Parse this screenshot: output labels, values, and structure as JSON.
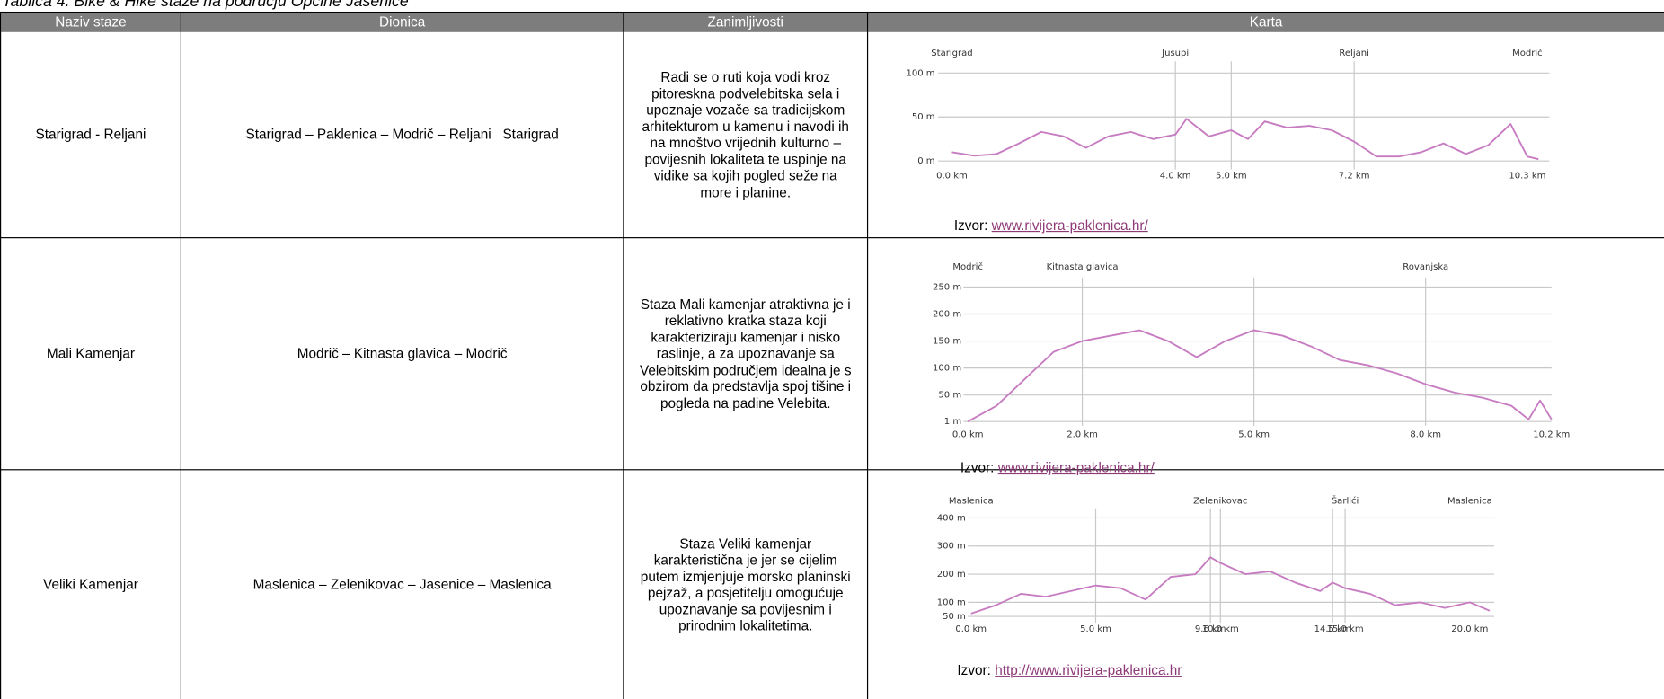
{
  "caption": "Tablica 4. Bike & Hike staze na području Općine Jasenice",
  "table": {
    "headers": [
      "Naziv staze",
      "Dionica",
      "Zanimljivosti",
      "Karta"
    ],
    "rows": [
      {
        "naziv": "Starigrad - Reljani",
        "dionica": "Starigrad – Paklenica – Modrič – Reljani   Starigrad",
        "zanimljivosti": "Radi se o ruti koja vodi kroz pitoreskna podvelebitska sela i upoznaje vozače sa tradicijskom arhitekturom u kamenu i navodi ih na mnoštvo vrijednih kulturno – povijesnih lokaliteta te uspinje na vidike sa kojih pogled seže na more i planine.",
        "karta": {
          "type": "line",
          "places": [
            "Starigrad",
            "Jusupi",
            null,
            "Reljani",
            "Modrič"
          ],
          "xlim": [
            0,
            10.6
          ],
          "xticks": [
            {
              "value": 0,
              "label": "0.0 km"
            },
            {
              "value": 4,
              "label": "4.0 km"
            },
            {
              "value": 5,
              "label": "5.0 km"
            },
            {
              "value": 7.2,
              "label": "7.2 km"
            },
            {
              "value": 10.3,
              "label": "10.3 km"
            }
          ],
          "ylim": [
            0,
            100
          ],
          "yticks": [
            {
              "value": 0,
              "label": "0 m"
            },
            {
              "value": 50,
              "label": "50 m"
            },
            {
              "value": 100,
              "label": "100 m"
            }
          ],
          "color": "#c77cc2",
          "x": [
            0,
            0.4,
            0.8,
            1.2,
            1.6,
            2.0,
            2.4,
            2.8,
            3.2,
            3.6,
            4.0,
            4.2,
            4.6,
            5.0,
            5.3,
            5.6,
            6.0,
            6.4,
            6.8,
            7.2,
            7.6,
            8.0,
            8.4,
            8.8,
            9.2,
            9.6,
            10.0,
            10.3,
            10.5
          ],
          "values": [
            10,
            6,
            8,
            20,
            33,
            28,
            15,
            28,
            33,
            25,
            30,
            48,
            28,
            35,
            25,
            45,
            38,
            40,
            35,
            22,
            5,
            5,
            10,
            20,
            8,
            18,
            42,
            5,
            2
          ],
          "source_label": "Izvor:",
          "source_link": "www.rivijera-paklenica.hr/"
        }
      },
      {
        "naziv": "Mali Kamenjar",
        "dionica": "Modrič – Kitnasta glavica – Modrič",
        "zanimljivosti": "Staza Mali kamenjar atraktivna je i reklativno kratka staza koji karakteriziraju kamenjar i nisko raslinje, a za upoznavanje sa Velebitskim područjem idealna je s obzirom da predstavlja spoj tišine i pogleda na padine Velebita.",
        "karta": {
          "type": "line",
          "places": [
            "Modrič",
            "Kitnasta glavica",
            null,
            "Rovanjska",
            null
          ],
          "xlim": [
            0,
            10.2
          ],
          "xticks": [
            {
              "value": 0,
              "label": "0.0 km"
            },
            {
              "value": 2,
              "label": "2.0 km"
            },
            {
              "value": 5,
              "label": "5.0 km"
            },
            {
              "value": 8,
              "label": "8.0 km"
            },
            {
              "value": 10.2,
              "label": "10.2 km"
            }
          ],
          "ylim": [
            1,
            250
          ],
          "yticks": [
            {
              "value": 1,
              "label": "1 m"
            },
            {
              "value": 50,
              "label": "50 m"
            },
            {
              "value": 100,
              "label": "100 m"
            },
            {
              "value": 150,
              "label": "150 m"
            },
            {
              "value": 200,
              "label": "200 m"
            },
            {
              "value": 250,
              "label": "250 m"
            }
          ],
          "color": "#c77cc2",
          "x": [
            0,
            0.5,
            1,
            1.5,
            2,
            2.5,
            3,
            3.5,
            4,
            4.5,
            5,
            5.5,
            6,
            6.5,
            7,
            7.5,
            8,
            8.5,
            9,
            9.5,
            9.8,
            10,
            10.2
          ],
          "values": [
            1,
            30,
            80,
            130,
            150,
            160,
            170,
            150,
            120,
            150,
            170,
            160,
            140,
            115,
            105,
            90,
            70,
            55,
            45,
            30,
            5,
            40,
            5
          ],
          "source_label": "Izvor:",
          "source_link": "www.rivijera-paklenica.hr/"
        }
      },
      {
        "naziv": "Veliki Kamenjar",
        "dionica": "Maslenica – Zelenikovac – Jasenice – Maslenica",
        "zanimljivosti": "Staza Veliki kamenjar karakteristična je jer se cijelim putem izmjenjuje morsko planinski pejzaž, a posjetitelju omogućuje upoznavanje sa povijesnim i prirodnim lokalitetima.",
        "karta": {
          "type": "line",
          "places": [
            "Maslenica",
            null,
            null,
            "Zelenikovac",
            null,
            "Šarlići",
            "Maslenica"
          ],
          "xlim": [
            0,
            21
          ],
          "xticks": [
            {
              "value": 0,
              "label": "0.0 km"
            },
            {
              "value": 5,
              "label": "5.0 km"
            },
            {
              "value": 9.6,
              "label": "9.6 km"
            },
            {
              "value": 10,
              "label": "10.0 km"
            },
            {
              "value": 14.5,
              "label": "14.5 km"
            },
            {
              "value": 15,
              "label": "15.0 km"
            },
            {
              "value": 20,
              "label": "20.0 km"
            }
          ],
          "ylim": [
            50,
            400
          ],
          "yticks": [
            {
              "value": 50,
              "label": "50 m"
            },
            {
              "value": 100,
              "label": "100 m"
            },
            {
              "value": 200,
              "label": "200 m"
            },
            {
              "value": 300,
              "label": "300 m"
            },
            {
              "value": 400,
              "label": "400 m"
            }
          ],
          "color": "#c77cc2",
          "x": [
            0,
            1,
            2,
            3,
            4,
            5,
            6,
            7,
            8,
            9,
            9.6,
            10,
            11,
            12,
            13,
            14,
            14.5,
            15,
            16,
            17,
            18,
            19,
            20,
            20.8
          ],
          "values": [
            60,
            90,
            130,
            120,
            140,
            160,
            150,
            110,
            190,
            200,
            260,
            240,
            200,
            210,
            170,
            140,
            170,
            150,
            130,
            90,
            100,
            80,
            100,
            70
          ],
          "source_label": "Izvor:",
          "source_link": "http://www.rivijera-paklenica.hr"
        }
      }
    ]
  }
}
